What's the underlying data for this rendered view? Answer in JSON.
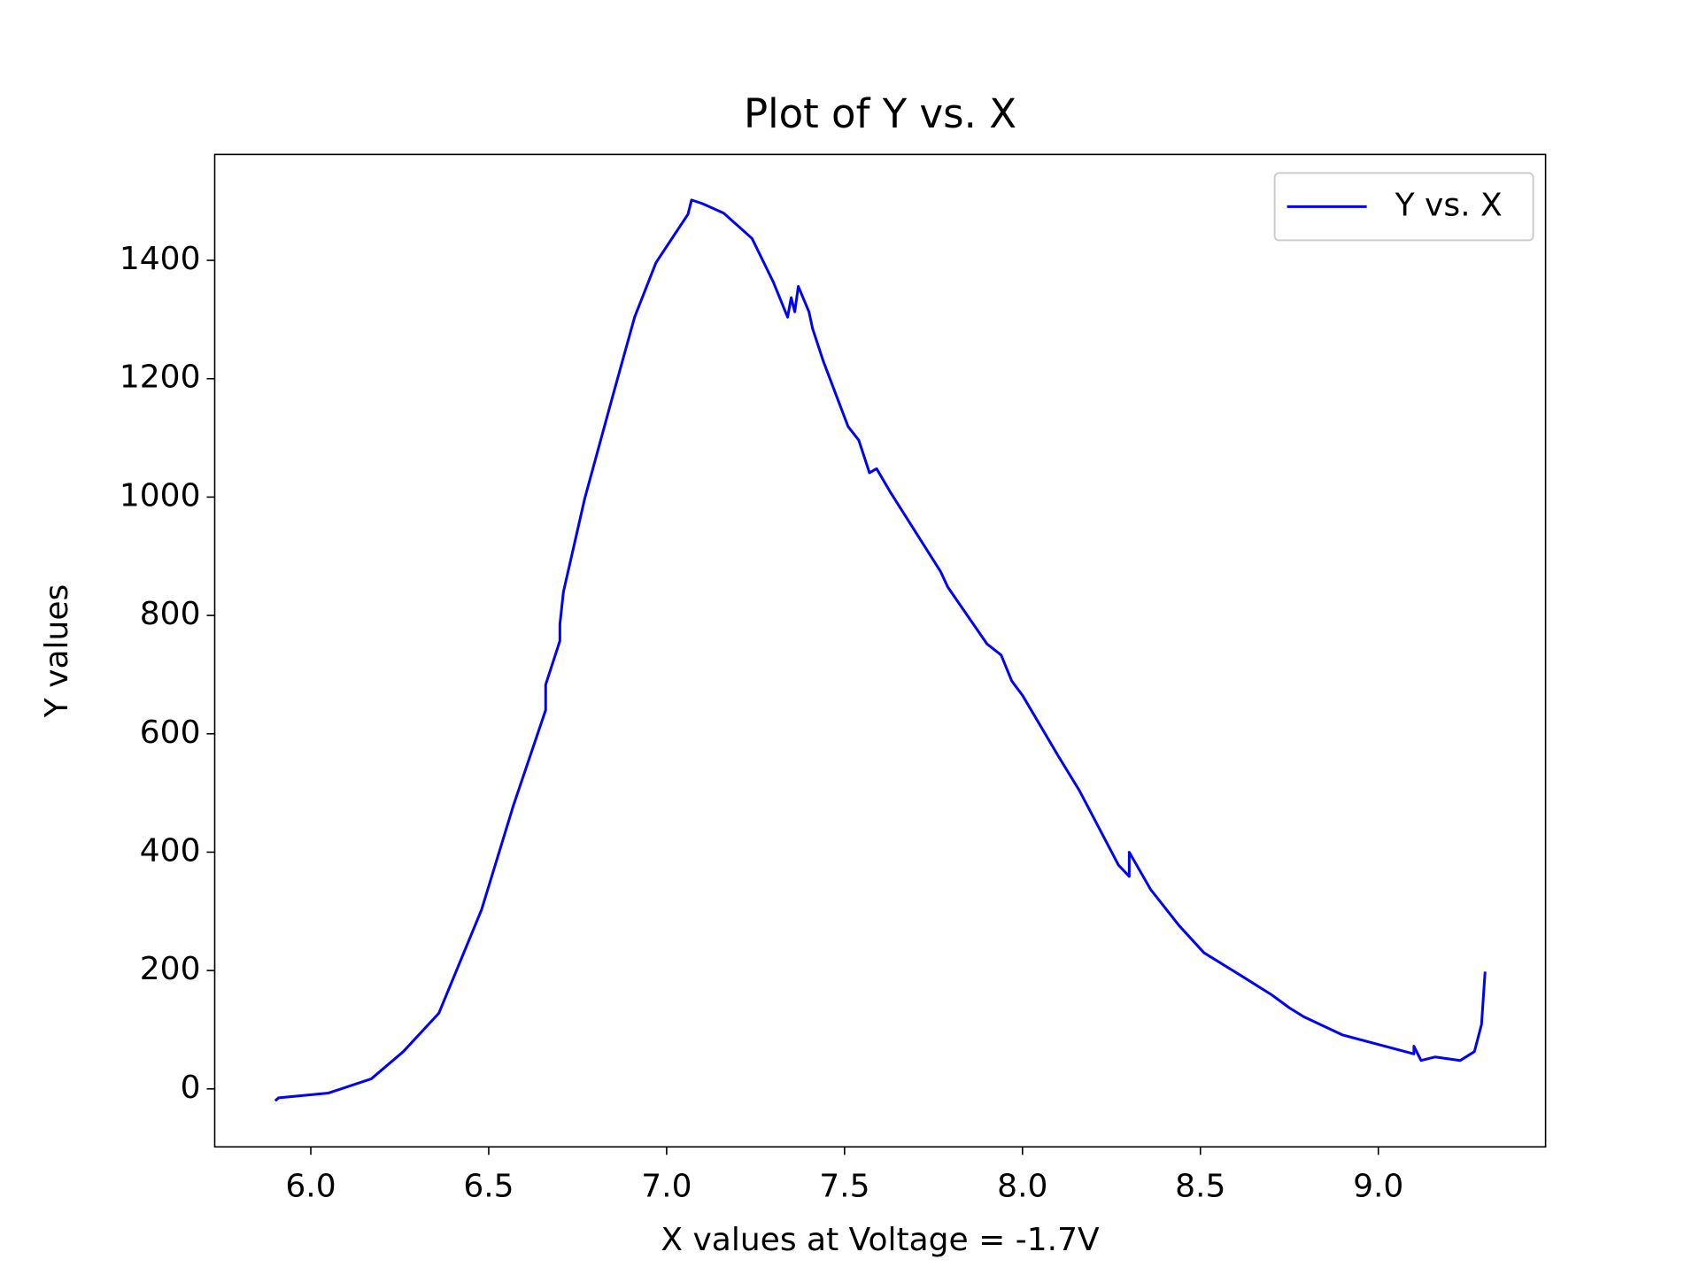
{
  "chart_data": {
    "type": "line",
    "title": "Plot of Y vs. X",
    "x_label": "X values at Voltage = -1.7V",
    "y_label": "Y values",
    "xlim": [
      5.73,
      9.47
    ],
    "ylim": [
      -98,
      1579
    ],
    "xticks": [
      {
        "value": 6.0,
        "label": "6.0"
      },
      {
        "value": 6.5,
        "label": "6.5"
      },
      {
        "value": 7.0,
        "label": "7.0"
      },
      {
        "value": 7.5,
        "label": "7.5"
      },
      {
        "value": 8.0,
        "label": "8.0"
      },
      {
        "value": 8.5,
        "label": "8.5"
      },
      {
        "value": 9.0,
        "label": "9.0"
      }
    ],
    "yticks": [
      0,
      200,
      400,
      600,
      800,
      1000,
      1200,
      1400
    ],
    "legend": "upper right",
    "series": [
      {
        "name": "Y vs. X",
        "color": "#0000ff",
        "x": [
          5.9,
          5.91,
          6.05,
          6.17,
          6.26,
          6.36,
          6.48,
          6.57,
          6.66,
          6.66,
          6.7,
          6.7,
          6.71,
          6.77,
          6.85,
          6.88,
          6.91,
          6.97,
          7.06,
          7.07,
          7.1,
          7.16,
          7.24,
          7.3,
          7.34,
          7.35,
          7.36,
          7.37,
          7.4,
          7.41,
          7.44,
          7.51,
          7.54,
          7.57,
          7.59,
          7.63,
          7.77,
          7.79,
          7.9,
          7.94,
          7.97,
          8.0,
          8.1,
          8.16,
          8.27,
          8.3,
          8.3,
          8.36,
          8.44,
          8.51,
          8.61,
          8.7,
          8.75,
          8.79,
          8.9,
          9.1,
          9.1,
          9.12,
          9.16,
          9.23,
          9.27,
          9.29,
          9.3
        ],
        "values": [
          -20,
          -15,
          -7,
          17,
          63,
          128,
          303,
          480,
          640,
          683,
          757,
          785,
          840,
          998,
          1174,
          1239,
          1304,
          1396,
          1478,
          1502,
          1496,
          1480,
          1437,
          1363,
          1304,
          1337,
          1313,
          1356,
          1313,
          1285,
          1230,
          1119,
          1096,
          1041,
          1048,
          1007,
          874,
          848,
          752,
          733,
          689,
          665,
          563,
          504,
          378,
          359,
          400,
          337,
          276,
          230,
          193,
          159,
          137,
          122,
          91,
          59,
          72,
          48,
          54,
          48,
          63,
          109,
          198
        ]
      }
    ]
  }
}
